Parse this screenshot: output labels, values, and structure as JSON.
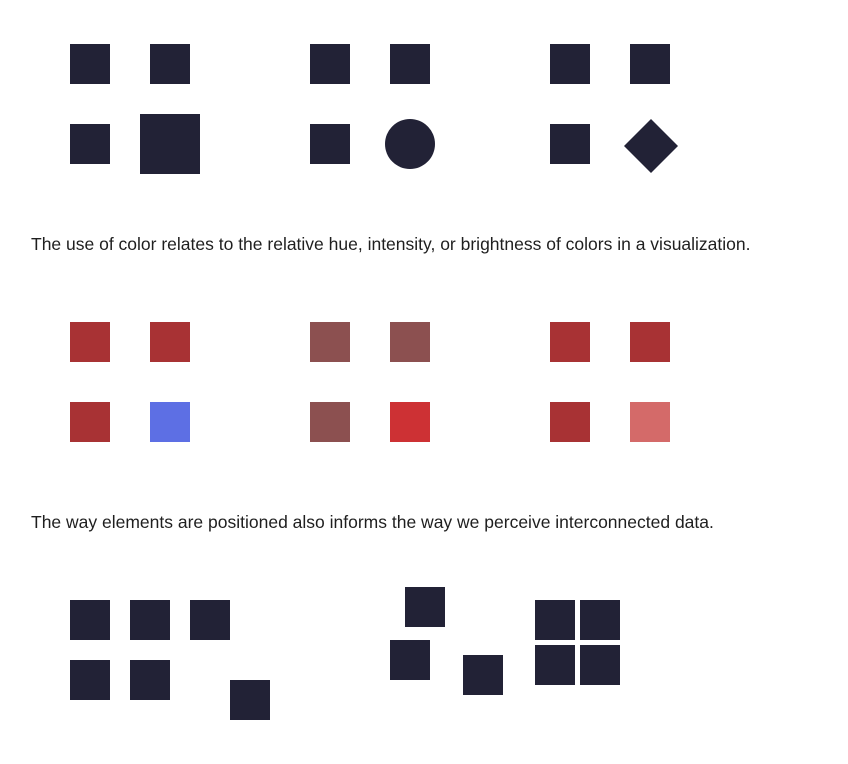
{
  "captions": {
    "color": "The use of color relates to the relative hue, intensity, or brightness of colors in a visualization.",
    "position": "The way elements are positioned also informs the way we perceive interconnected data."
  },
  "colors": {
    "dark": "#222236",
    "red": "#a83234",
    "blue": "#5d6fe4",
    "muted_red": "#8c5050",
    "bright_red": "#cd3134",
    "light_red": "#d46a69"
  },
  "shape_groups": [
    {
      "odd_shape": "large-square"
    },
    {
      "odd_shape": "circle"
    },
    {
      "odd_shape": "diamond"
    }
  ],
  "color_groups": [
    {
      "base": "red",
      "odd": "blue"
    },
    {
      "base": "muted_red",
      "odd": "bright_red"
    },
    {
      "base": "red",
      "odd": "light_red"
    }
  ],
  "position_groups": [
    {
      "arrangement": "grid-with-outlier",
      "count": 6
    },
    {
      "arrangement": "scattered",
      "count": 3
    },
    {
      "arrangement": "tight-cluster",
      "count": 4
    }
  ]
}
